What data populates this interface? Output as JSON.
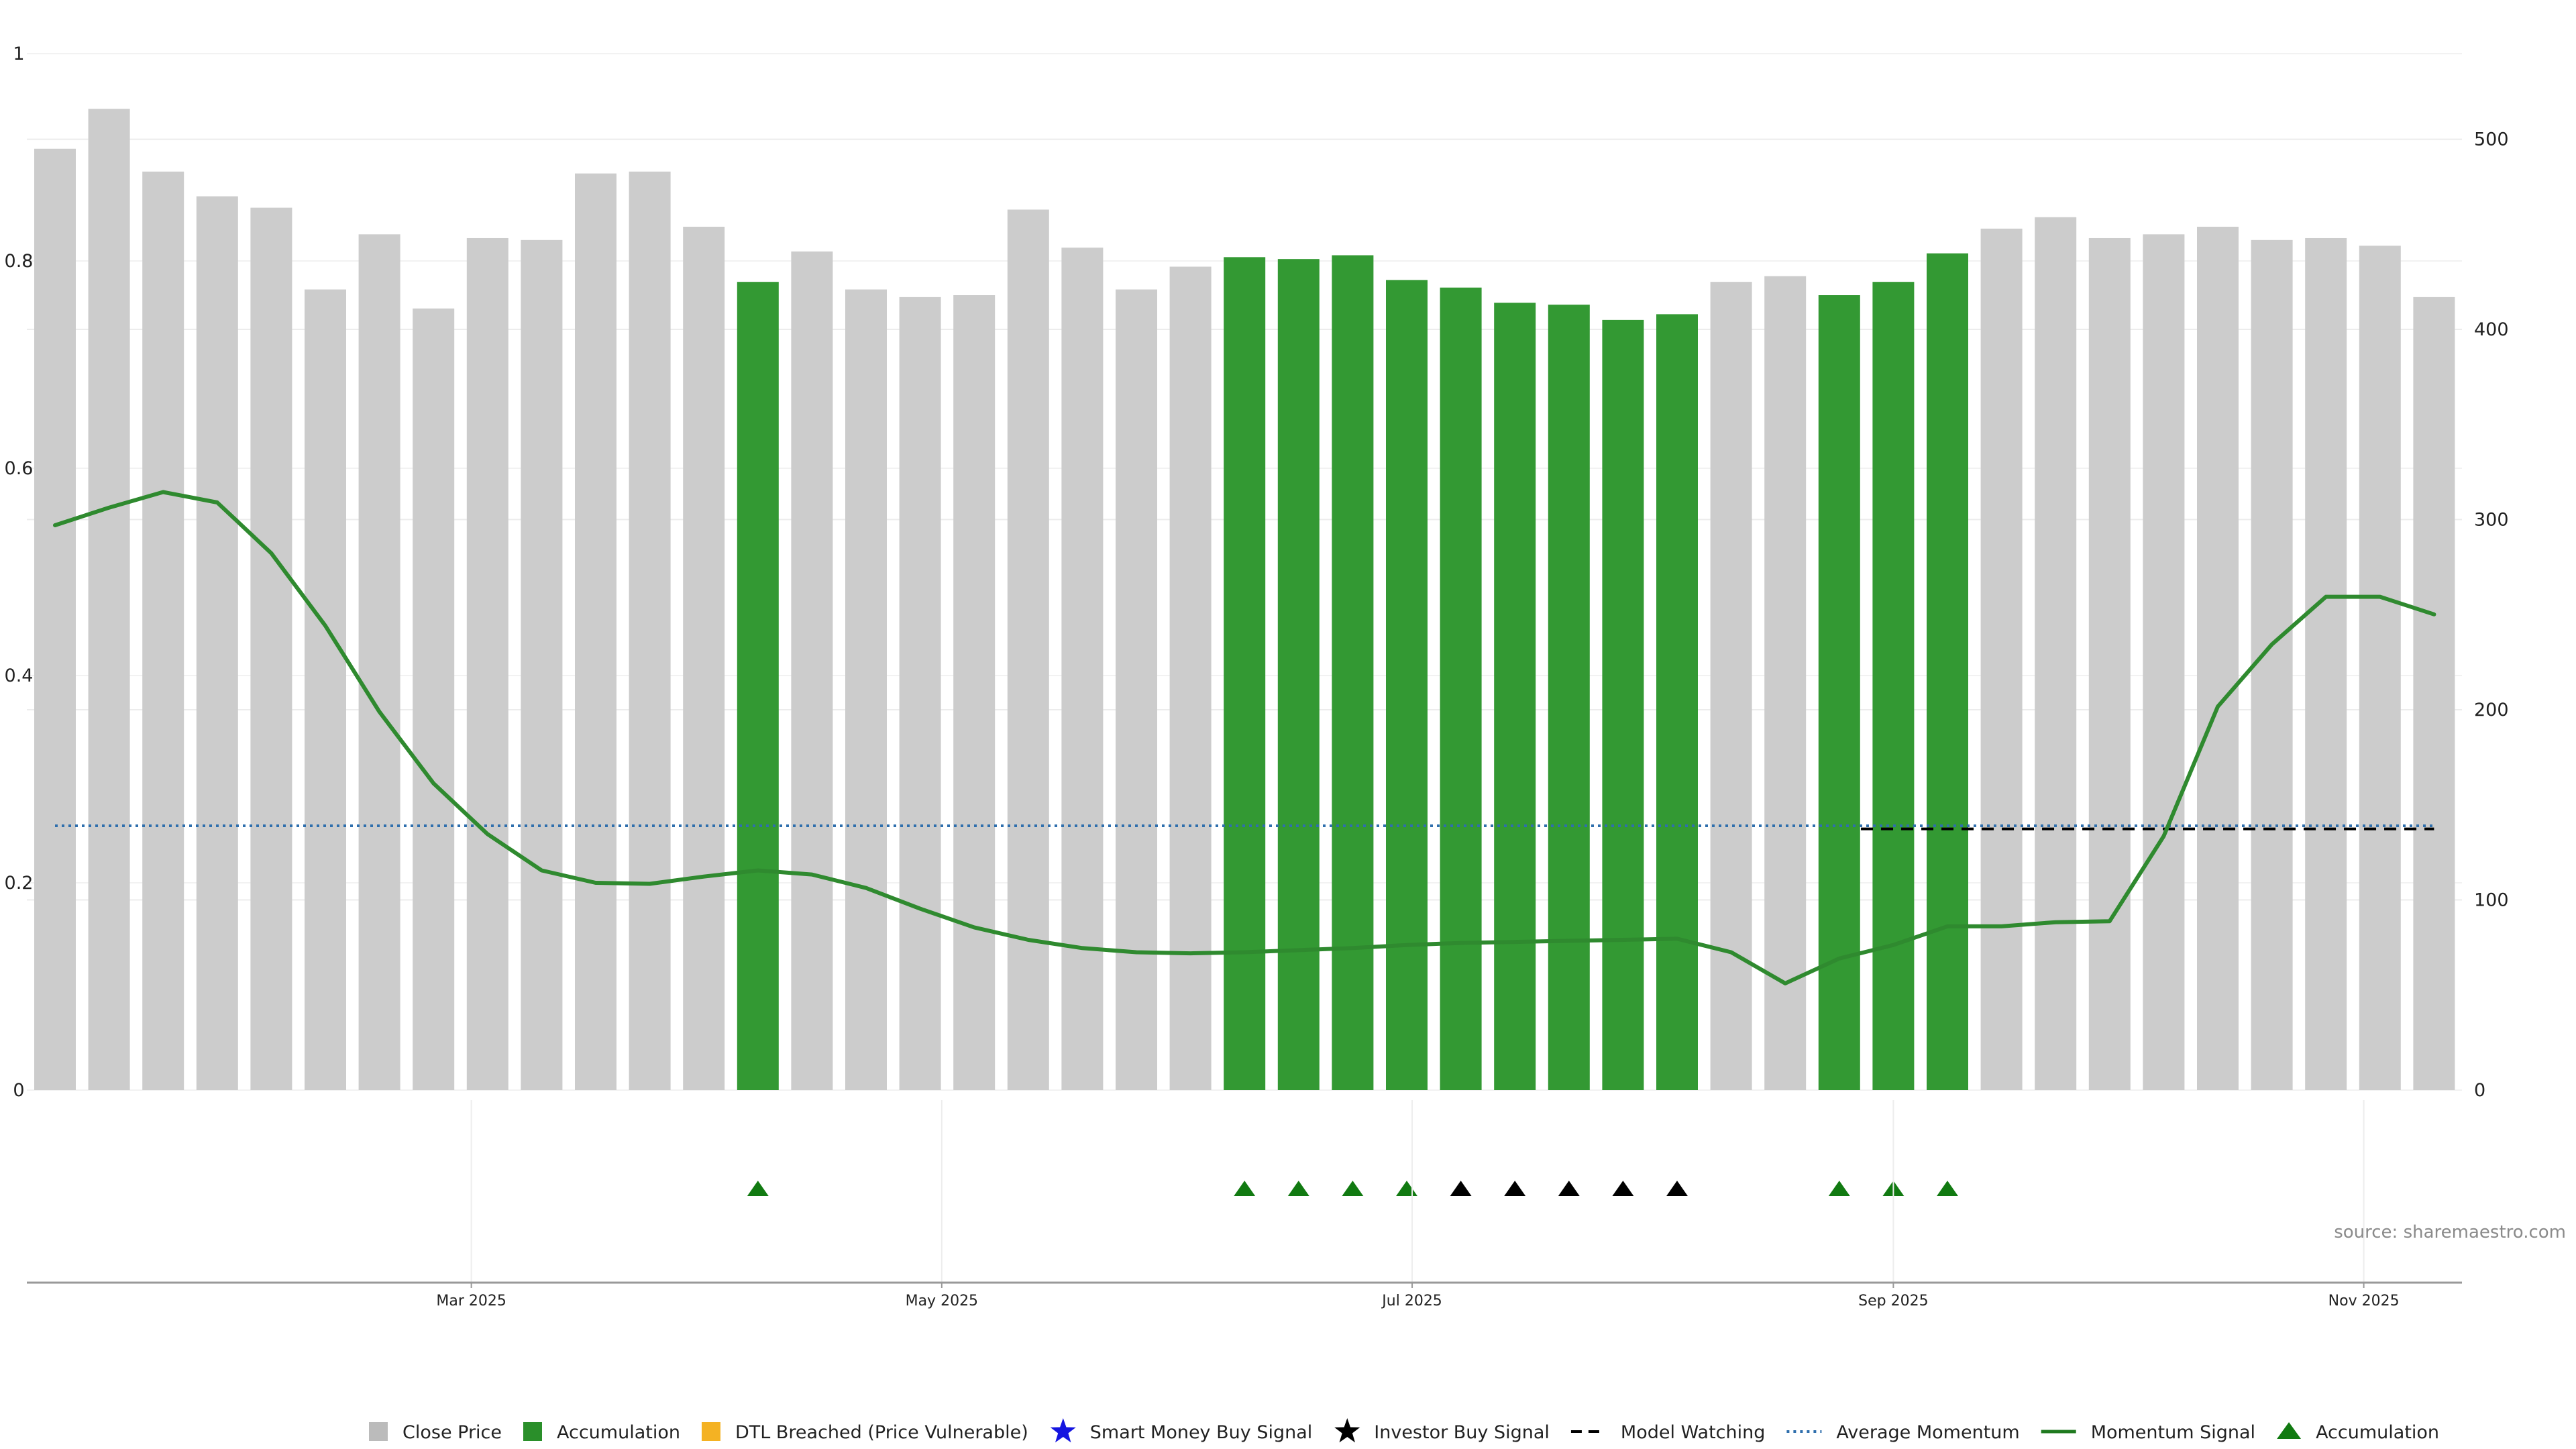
{
  "chart_data": {
    "type": "bar",
    "weeks": 45,
    "close_price": [
      495,
      516,
      483,
      470,
      464,
      421,
      450,
      411,
      448,
      447,
      482,
      483,
      454,
      425,
      441,
      421,
      417,
      418,
      463,
      443,
      421,
      433,
      438,
      437,
      439,
      426,
      422,
      414,
      413,
      405,
      408,
      425,
      428,
      418,
      425,
      440,
      453,
      459,
      448,
      450,
      454,
      447,
      448,
      444,
      417
    ],
    "accumulation_weeks": [
      13,
      22,
      23,
      24,
      25,
      26,
      27,
      28,
      29,
      30,
      33,
      34,
      35
    ],
    "momentum_signal": [
      0.545,
      0.562,
      0.577,
      0.567,
      0.518,
      0.448,
      0.365,
      0.296,
      0.247,
      0.212,
      0.2,
      0.199,
      0.206,
      0.212,
      0.208,
      0.195,
      0.175,
      0.157,
      0.145,
      0.137,
      0.133,
      0.132,
      0.133,
      0.135,
      0.137,
      0.14,
      0.142,
      0.143,
      0.144,
      0.145,
      0.146,
      0.133,
      0.103,
      0.127,
      0.14,
      0.158,
      0.158,
      0.162,
      0.163,
      0.245,
      0.37,
      0.43,
      0.476,
      0.476,
      0.459
    ],
    "average_momentum": 0.255,
    "model_watching": {
      "from_week": 33.4,
      "to_week": 44,
      "value": 0.252
    },
    "markers": {
      "accumulation_triangles": [
        13,
        22,
        23,
        24,
        25,
        33,
        34,
        35
      ],
      "investor_buy_triangles": [
        26,
        27,
        28,
        29,
        30
      ]
    },
    "left_axis": {
      "ylim": [
        0,
        1
      ],
      "ticks": [
        "0",
        "0.2",
        "0.4",
        "0.6",
        "0.8",
        "1"
      ]
    },
    "right_axis": {
      "ylim": [
        0,
        545
      ],
      "ticks": [
        "0",
        "100",
        "200",
        "300",
        "400",
        "500"
      ]
    },
    "date_ticks": [
      {
        "label": "Mar 2025",
        "week": 7.7
      },
      {
        "label": "May 2025",
        "week": 16.4
      },
      {
        "label": "Jul 2025",
        "week": 25.1
      },
      {
        "label": "Sep 2025",
        "week": 34.0
      },
      {
        "label": "Nov 2025",
        "week": 42.7
      }
    ],
    "legend": [
      {
        "label": "Close Price",
        "symbol": "square",
        "color": "#bbbbbb"
      },
      {
        "label": "Accumulation",
        "symbol": "square",
        "color": "#2a8f2a"
      },
      {
        "label": "DTL Breached (Price Vulnerable)",
        "symbol": "square",
        "color": "#f4b223"
      },
      {
        "label": "Smart Money Buy Signal",
        "symbol": "star",
        "color": "#1515e0"
      },
      {
        "label": "Investor Buy Signal",
        "symbol": "star",
        "color": "#000000"
      },
      {
        "label": "Model Watching",
        "symbol": "dash",
        "color": "#000000"
      },
      {
        "label": "Average Momentum",
        "symbol": "dot",
        "color": "#2f6fad"
      },
      {
        "label": "Momentum Signal",
        "symbol": "line",
        "color": "#1f7a1f"
      },
      {
        "label": "Accumulation",
        "symbol": "triangle",
        "color": "#117a11"
      }
    ],
    "source": "source: sharemaestro.com",
    "colors": {
      "close_bar": "#cccccc",
      "accumulation_bar": "#339933",
      "momentum": "#2f8a2f",
      "average": "#2f6fad",
      "watching": "#000000",
      "triangle_green": "#117a11",
      "triangle_black": "#000000"
    }
  }
}
